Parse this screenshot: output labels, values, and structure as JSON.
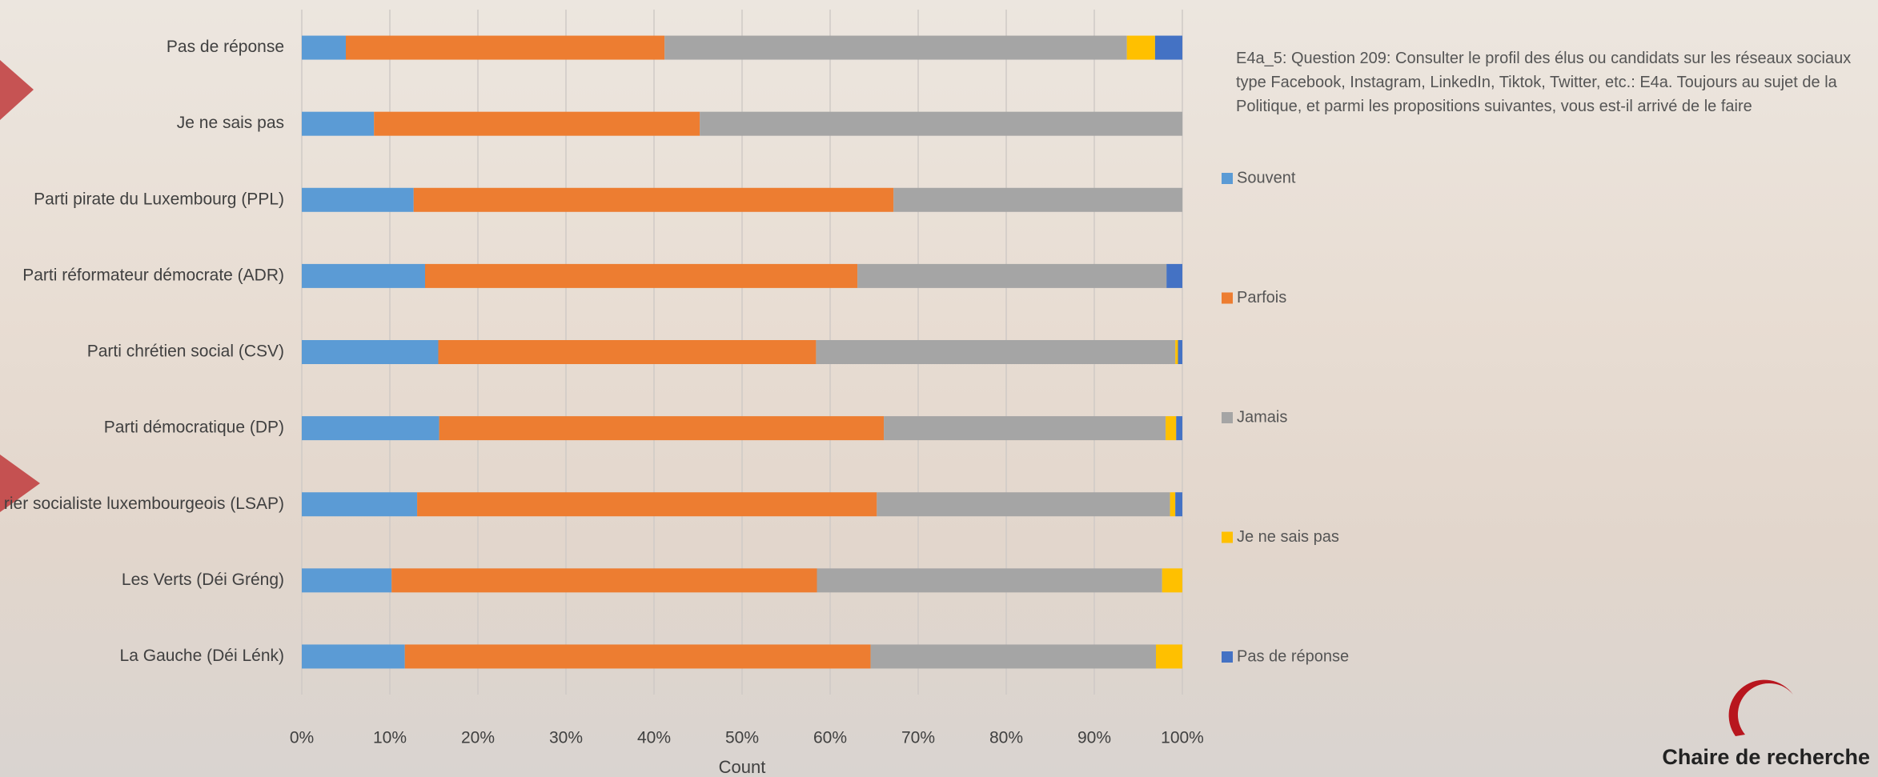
{
  "chart_data": {
    "type": "stacked-bar-horizontal",
    "legend_title": "E4a_5: Question 209: Consulter le profil des élus ou candidats sur les réseaux sociaux type Facebook, Instagram, LinkedIn, Tiktok, Twitter, etc.: E4a. Toujours au sujet de la Politique, et parmi les propositions suivantes, vous est-il arrivé de le faire",
    "x_label": "Count",
    "logo": "Chaire de recherche",
    "categories": [
      "Pas de réponse",
      "Je ne sais pas",
      "Parti pirate du Luxembourg (PPL)",
      "Parti réformateur démocrate (ADR)",
      "Parti chrétien social (CSV)",
      "Parti démocratique (DP)",
      "rier socialiste luxembourgeois (LSAP)",
      "Les Verts (Déi Gréng)",
      "La Gauche (Déi Lénk)"
    ],
    "series": [
      {
        "name": "Souvent",
        "color": "#5b9bd5",
        "values": [
          5.0,
          8.2,
          12.7,
          14.0,
          15.5,
          15.6,
          13.1,
          10.2,
          11.7
        ]
      },
      {
        "name": "Parfois",
        "color": "#ed7d31",
        "values": [
          36.2,
          37.0,
          54.5,
          49.1,
          42.9,
          50.5,
          52.2,
          48.3,
          52.9
        ]
      },
      {
        "name": "Jamais",
        "color": "#a5a5a5",
        "values": [
          52.5,
          54.8,
          32.8,
          35.1,
          40.8,
          32.0,
          33.3,
          39.2,
          32.4
        ]
      },
      {
        "name": "Je ne sais pas",
        "color": "#ffc000",
        "values": [
          3.2,
          0,
          0,
          0,
          0.3,
          1.2,
          0.6,
          2.3,
          3.0
        ]
      },
      {
        "name": "Pas de réponse",
        "color": "#4472c4",
        "values": [
          3.1,
          0,
          0,
          1.8,
          0.5,
          0.7,
          0.8,
          0,
          0
        ]
      }
    ],
    "xlim": [
      0,
      100
    ],
    "xticks": [
      {
        "value": 0,
        "label": "0%"
      },
      {
        "value": 10,
        "label": "10%"
      },
      {
        "value": 20,
        "label": "20%"
      },
      {
        "value": 30,
        "label": "30%"
      },
      {
        "value": 40,
        "label": "40%"
      },
      {
        "value": 50,
        "label": "50%"
      },
      {
        "value": 60,
        "label": "60%"
      },
      {
        "value": 70,
        "label": "70%"
      },
      {
        "value": 80,
        "label": "80%"
      },
      {
        "value": 90,
        "label": "90%"
      },
      {
        "value": 100,
        "label": "100%"
      }
    ],
    "grid": true
  }
}
